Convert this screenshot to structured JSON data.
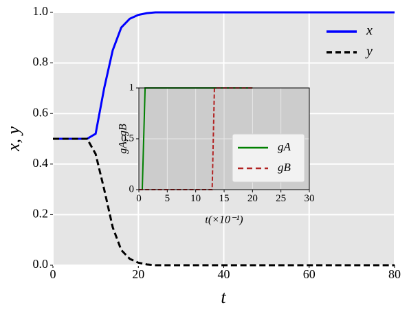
{
  "chart_data": [
    {
      "type": "line",
      "xlabel": "t",
      "ylabel": "x, y",
      "x": [
        0,
        2,
        4,
        6,
        8,
        10,
        12,
        14,
        16,
        18,
        20,
        22,
        24,
        30,
        40,
        50,
        60,
        70,
        80
      ],
      "series": [
        {
          "name": "x",
          "color": "#0000ff",
          "linestyle": "solid",
          "values": [
            0.5,
            0.5,
            0.5,
            0.5,
            0.5,
            0.52,
            0.7,
            0.85,
            0.94,
            0.975,
            0.99,
            0.997,
            1.0,
            1.0,
            1.0,
            1.0,
            1.0,
            1.0,
            1.0
          ]
        },
        {
          "name": "y",
          "color": "#000000",
          "linestyle": "dashed",
          "values": [
            0.5,
            0.5,
            0.5,
            0.5,
            0.5,
            0.44,
            0.3,
            0.15,
            0.06,
            0.025,
            0.01,
            0.003,
            0,
            0,
            0,
            0,
            0,
            0,
            0
          ]
        }
      ],
      "xlim": [
        0,
        80
      ],
      "xticks": [
        0,
        20,
        40,
        60,
        80
      ],
      "ylim": [
        0,
        1
      ],
      "yticks": [
        {
          "value": 0,
          "label": "0.0"
        },
        0.2,
        0.4,
        0.6,
        0.8,
        {
          "value": 1,
          "label": "1.0"
        }
      ],
      "grid": true,
      "legend": "upper right"
    },
    {
      "type": "line",
      "xlabel": "t(×10⁻¹)",
      "ylabel": "gA, gB",
      "x": [
        0,
        0.6,
        1.1,
        1.5,
        12.9,
        13.3,
        20
      ],
      "series": [
        {
          "name": "gA",
          "color": "#008000",
          "linestyle": "solid",
          "values": [
            0,
            0,
            1,
            1,
            1,
            1,
            1
          ]
        },
        {
          "name": "gB",
          "color": "#b22222",
          "linestyle": "dashed",
          "values": [
            0,
            0,
            0,
            0,
            0,
            1,
            1
          ]
        }
      ],
      "xlim": [
        0,
        30
      ],
      "xticks": [
        0,
        5,
        10,
        15,
        20,
        25,
        30
      ],
      "ylim": [
        0,
        1
      ],
      "yticks": [
        0,
        0.5,
        1
      ],
      "grid": true,
      "legend": "center right"
    }
  ]
}
